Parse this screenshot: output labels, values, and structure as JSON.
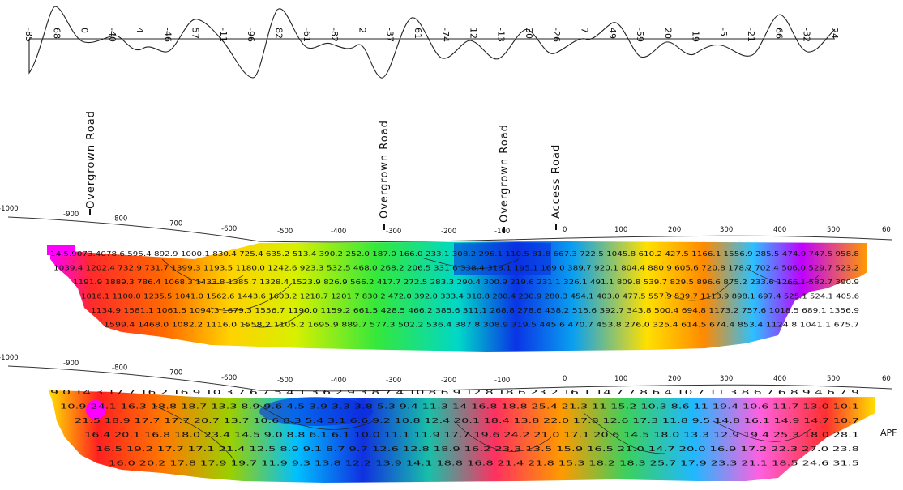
{
  "profile": {
    "values": [
      "-85",
      "68",
      "0",
      "-40",
      "4",
      "-46",
      "57",
      "-11",
      "-96",
      "82",
      "-61",
      "-82",
      "2",
      "-37",
      "61",
      "-74",
      "12",
      "-13",
      "30",
      "-26",
      "7",
      "49",
      "-59",
      "20",
      "-19",
      "-5",
      "-21",
      "66",
      "-32",
      "24"
    ]
  },
  "roads": [
    {
      "label": "Overgrown Road"
    },
    {
      "label": "Overgrown Road"
    },
    {
      "label": "Overgrown Road"
    },
    {
      "label": "Access Road"
    }
  ],
  "section1": {
    "axis_ticks": [
      "-1000",
      "-900",
      "-800",
      "-700",
      "-600",
      "-500",
      "-400",
      "-300",
      "-200",
      "-100",
      "0",
      "100",
      "200",
      "300",
      "400",
      "500",
      "60"
    ],
    "value_rows": [
      "14.5.9073.4078.6 595.4 892.9 1000.1 830.4 725.4 635.2 513.4 390.2 252.0 187.0 166.0 233.1 308.2 296.1 110.5 81.8 667.3 722.5 1045.8 610.2 427.5 1166.1 1556.9 285.5 474.9 747.5 958.8",
      "1039.4 1202.4 732.9 731.7 1399.3 1193.5 1180.0 1242.6 923.3 532.5 468.0 268.2 206.5 331.6 338.4 318.1 195.1 169.0 389.7 920.1 804.4 880.9 605.6 720.8 178.7 702.4 506.0 529.7 523.2",
      "1191.9 1889.3 786.4 1068.3 1433.8 1385.7 1328.4 1523.9 826.9 566.2 417.7 272.5 283.3 290.4 300.9 219.6 231.1 326.1 491.1 809.8 539.7 829.5 896.6 875.2 233.6 1266.1 582.7 390.9",
      "1016.1 1100.0 1235.5 1041.0 1562.6 1443.6 1603.2 1218.7 1201.7 830.2 472.0 392.0 333.4 310.8 280.4 230.9 280.3 454.1 403.0 477.5 557.9 539.7 1113.9 898.1 697.4 525.1 524.1 405.6",
      "1134.9 1581.1 1061.5 1094.3 1679.3 1556.7 1190.0 1159.2 661.5 428.5 466.2 385.6 311.1 268.8 278.6 438.2 515.6 392.7 343.8 500.4 694.8 1173.2 757.6 1018.5 689.1 1356.9",
      "1599.4 1468.0 1082.2 1116.0 1558.2 1105.2 1695.9 889.7 577.3 502.2 536.4 387.8 308.9 319.5 445.6 470.7 453.8 276.0 325.4 614.5 674.4 853.4 1124.8 1041.1 675.7"
    ]
  },
  "section2": {
    "axis_ticks": [
      "-1000",
      "-900",
      "-800",
      "-700",
      "-600",
      "-500",
      "-400",
      "-300",
      "-200",
      "-100",
      "0",
      "100",
      "200",
      "300",
      "400",
      "500",
      "60"
    ],
    "value_rows": [
      "9.0 14.3 17.7 16.2 16.9 10.3 7.6 7.5 4.1 3.6 2.9 3.8 7.4 10.8 6.9 12.8 18.6 23.2 16.1 14.7 7.8 6.4 10.7 11.3 8.6 7.6 8.9 4.6 7.9",
      "10.9 24.1 16.3 18.8 18.7 13.3 8.9 9.6 4.5 3.9 3.3 3.8 5.3 9.4 11.3 14 16.8 18.8 25.4 21.3 11 15.2 10.3 8.6 11 19.4 10.6 11.7 13.0 10.1",
      "21.5 18.9 17.7 17.7 20.7 13.7 10.6 8.3 5.4 3.1 6.6 9.2 10.8 12.4 20.1 18.4 13.8 22.0 17.8 12.6 17.3 11.8 9.5 14.8 16.1 14.9 14.7 10.7",
      "16.4 20.1 16.8 18.0 23.4 14.5 9.0 8.8 6.1 6.1 10.0 11.1 11.9 17.7 19.6 24.2 21.0 17.1 20.6 14.5 18.0 13.3 12.9 19.4 25.3 18.0 28.1",
      "16.5 19.2 17.7 17.1 21.4 12.5 8.9 9.1 8.7 9.7 12.6 12.8 18.9 16.2 23.3 13.5 15.9 16.5 21.0 14.7 20.0 16.9 17.2 22.3 27.0 23.8",
      "16.0 20.2 17.8 17.9 19.7 11.9 9.3 13.8 12.2 13.9 14.1 18.8 16.8 21.4 21.8 15.3 18.2 18.3 25.7 17.9 23.3 21.1 18.5 24.6 31.5"
    ],
    "side_label": "APF"
  }
}
